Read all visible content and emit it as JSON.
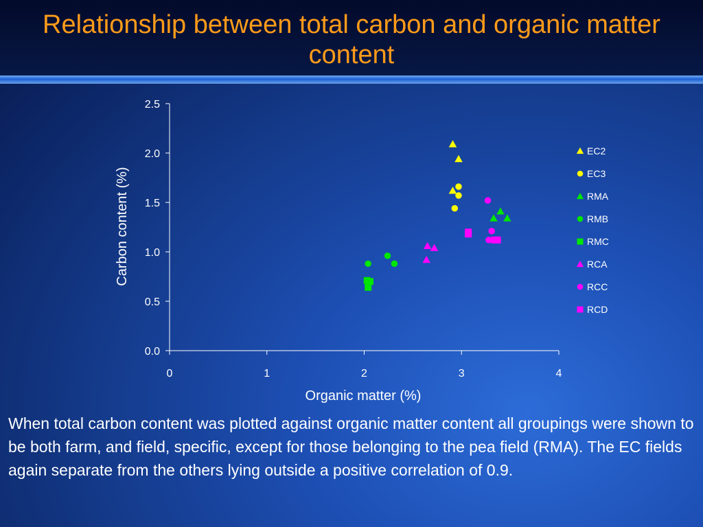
{
  "slide": {
    "title": "Relationship between total carbon and organic matter content",
    "body": "When total carbon content was plotted against organic matter content all groupings were shown to be both farm, and field, specific, except for those belonging to the pea field (RMA). The EC fields again separate from the others lying outside a positive correlation of 0.9."
  },
  "colors": {
    "title": "#ff9b1a",
    "text": "#ffffff",
    "yellow": "#ffff00",
    "green": "#00e600",
    "magenta": "#ff00ff"
  },
  "chart_data": {
    "type": "scatter",
    "xlabel": "Organic matter (%)",
    "ylabel": "Carbon content (%)",
    "xlim": [
      0,
      4
    ],
    "ylim": [
      0,
      2.5
    ],
    "xticks": [
      "0",
      "1",
      "2",
      "3",
      "4"
    ],
    "yticks": [
      "0.0",
      "0.5",
      "1.0",
      "1.5",
      "2.0",
      "2.5"
    ],
    "legend_position": "right",
    "series": [
      {
        "name": "EC2",
        "marker": "triangle",
        "color": "#ffff00",
        "points": [
          [
            2.91,
            2.09
          ],
          [
            2.97,
            1.94
          ],
          [
            2.91,
            1.62
          ]
        ]
      },
      {
        "name": "EC3",
        "marker": "circle",
        "color": "#ffff00",
        "points": [
          [
            2.97,
            1.66
          ],
          [
            2.97,
            1.57
          ],
          [
            2.93,
            1.44
          ]
        ]
      },
      {
        "name": "RMA",
        "marker": "triangle",
        "color": "#00e600",
        "points": [
          [
            3.4,
            1.41
          ],
          [
            3.33,
            1.34
          ],
          [
            3.47,
            1.34
          ]
        ]
      },
      {
        "name": "RMB",
        "marker": "circle",
        "color": "#00e600",
        "points": [
          [
            2.04,
            0.88
          ],
          [
            2.24,
            0.96
          ],
          [
            2.31,
            0.88
          ]
        ]
      },
      {
        "name": "RMC",
        "marker": "square",
        "color": "#00e600",
        "points": [
          [
            2.03,
            0.71
          ],
          [
            2.06,
            0.7
          ],
          [
            2.04,
            0.64
          ]
        ]
      },
      {
        "name": "RCA",
        "marker": "triangle",
        "color": "#ff00ff",
        "points": [
          [
            2.65,
            1.06
          ],
          [
            2.72,
            1.04
          ],
          [
            2.64,
            0.92
          ]
        ]
      },
      {
        "name": "RCC",
        "marker": "circle",
        "color": "#ff00ff",
        "points": [
          [
            3.27,
            1.52
          ],
          [
            3.31,
            1.21
          ],
          [
            3.28,
            1.12
          ]
        ]
      },
      {
        "name": "RCD",
        "marker": "square",
        "color": "#ff00ff",
        "points": [
          [
            3.07,
            1.2
          ],
          [
            3.07,
            1.18
          ],
          [
            3.34,
            1.12
          ],
          [
            3.37,
            1.12
          ]
        ]
      }
    ]
  }
}
